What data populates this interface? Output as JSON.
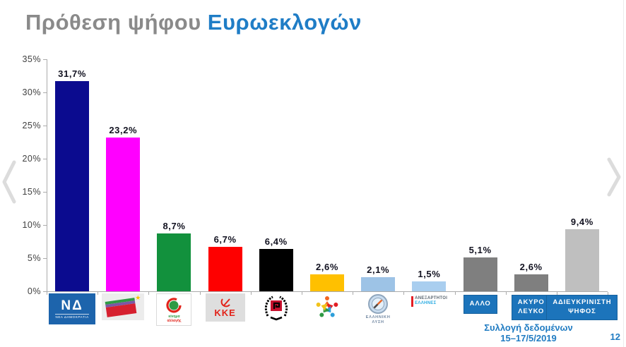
{
  "title": {
    "prefix": "Πρόθεση ψήφου ",
    "highlight": "Ευρωεκλογών"
  },
  "icons": {
    "prev": "chevron-left",
    "next": "chevron-right"
  },
  "footer": {
    "line1": "Συλλογή δεδομένων",
    "line2": "15–17/5/2019",
    "page_number": "12"
  },
  "colors": {
    "title_gray": "#8A8A8A",
    "accent_blue": "#1F7DC6",
    "footer_blue": "#1F7BC2",
    "label_box_blue": "#1C74BB",
    "axis_gray": "#ABABAB",
    "value_label": "#121220",
    "chevron_gray": "#DCDCDC"
  },
  "chart_data": {
    "type": "bar",
    "title": "Πρόθεση ψήφου Ευρωεκλογών",
    "xlabel": "",
    "ylabel": "",
    "ylim": [
      0,
      35
    ],
    "ytick_labels": [
      "0%",
      "5%",
      "10%",
      "15%",
      "20%",
      "25%",
      "30%",
      "35%"
    ],
    "grid": false,
    "legend": "none",
    "categories": [
      "ΝΕΑ ΔΗΜΟΚΡΑΤΙΑ",
      "ΣΥΡΙΖΑ",
      "ΚΙΝΗΜΑ ΑΛΛΑΓΗΣ",
      "ΚΚΕ",
      "ΧΡΥΣΗ ΑΥΓΗ (meander-wreath-logo)",
      "(star-figures-logo)",
      "ΕΛΛΗΝΙΚΗ ΛΥΣΗ",
      "ΑΝΕΞΑΡΤΗΤΟΙ ΕΛΛΗΝΕΣ",
      "ΑΛΛΟ",
      "ΑΚΥΡΟ ΛΕΥΚΟ",
      "ΑΔΙΕΥΚΡΙΝΙΣΤΗ ΨΗΦΟΣ"
    ],
    "values": [
      31.7,
      23.2,
      8.7,
      6.7,
      6.4,
      2.6,
      2.1,
      1.5,
      5.1,
      2.6,
      9.4
    ],
    "bars": [
      {
        "value": 31.7,
        "display": "31,7%",
        "color": "#0B0B8F",
        "logo": "nd",
        "logo_mark": "ΝΔ",
        "logo_text": "ΝΕΑ ΔΗΜΟΚΡΑΤΙΑ"
      },
      {
        "value": 23.2,
        "display": "23,2%",
        "color": "#FF00FF",
        "logo": "syriza"
      },
      {
        "value": 8.7,
        "display": "8,7%",
        "color": "#12913D",
        "logo": "kinal",
        "logo_lines": [
          "κίνημα",
          "αλλαγής"
        ]
      },
      {
        "value": 6.7,
        "display": "6,7%",
        "color": "#FE0000",
        "logo": "kke",
        "logo_text": "ΚΚΕ"
      },
      {
        "value": 6.4,
        "display": "6,4%",
        "color": "#000000",
        "logo": "wreath"
      },
      {
        "value": 2.6,
        "display": "2,6%",
        "color": "#FFC000",
        "logo": "star"
      },
      {
        "value": 2.1,
        "display": "2,1%",
        "color": "#9DC3E6",
        "logo": "lysi",
        "logo_lines": [
          "ΕΛΛΗΝΙΚΗ",
          "ΛΥΣΗ"
        ]
      },
      {
        "value": 1.5,
        "display": "1,5%",
        "color": "#A9CEEF",
        "logo": "anel",
        "logo_lines": [
          "ΑΝΕΞΑΡΤΗΤΟΙ",
          "ΕΛΛΗΝΕΣ"
        ]
      },
      {
        "value": 5.1,
        "display": "5,1%",
        "color": "#7F7F7F",
        "logo": "bluebox",
        "box_lines": [
          "ΑΛΛΟ"
        ]
      },
      {
        "value": 2.6,
        "display": "2,6%",
        "color": "#7F7F7F",
        "logo": "bluebox",
        "box_lines": [
          "ΑΚΥΡΟ",
          "ΛΕΥΚΟ"
        ]
      },
      {
        "value": 9.4,
        "display": "9,4%",
        "color": "#BFBFBF",
        "logo": "bluebox",
        "box_lines": [
          "ΑΔΙΕΥΚΡΙΝΙΣΤΗ",
          "ΨΗΦΟΣ"
        ]
      }
    ]
  }
}
